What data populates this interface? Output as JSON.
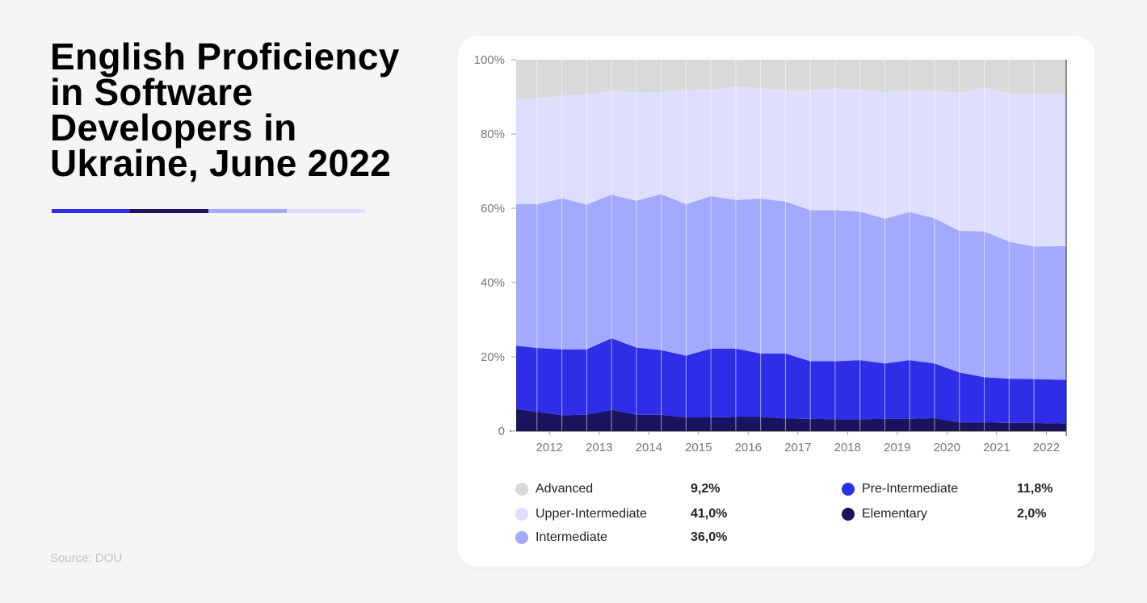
{
  "title": "English Proficiency in Software Developers in Ukraine, June 2022",
  "source": "Source: DOU",
  "accent_bar_colors": [
    "#2e2ee8",
    "#1a1460",
    "#a3a9fd",
    "#dedffe"
  ],
  "chart_data": {
    "type": "area",
    "stacked": true,
    "title": "",
    "xlabel": "",
    "ylabel": "",
    "xlim": [
      2011.33,
      2022.4
    ],
    "ylim": [
      0,
      100
    ],
    "x_ticks": [
      "2012",
      "2013",
      "2014",
      "2015",
      "2016",
      "2017",
      "2018",
      "2019",
      "2020",
      "2021",
      "2022"
    ],
    "y_ticks": [
      "0",
      "20%",
      "40%",
      "60%",
      "80%",
      "100%"
    ],
    "grid": "vertical lines at data points",
    "x": [
      2011.33,
      2011.75,
      2012.25,
      2012.75,
      2013.25,
      2013.75,
      2014.25,
      2014.75,
      2015.25,
      2015.75,
      2016.25,
      2016.75,
      2017.25,
      2017.75,
      2018.25,
      2018.75,
      2019.25,
      2019.75,
      2020.25,
      2020.75,
      2021.25,
      2021.75,
      2022.4
    ],
    "series": [
      {
        "name": "Elementary",
        "color": "#1a1460",
        "values": [
          5.9,
          5.2,
          4.3,
          4.4,
          5.7,
          4.4,
          4.4,
          3.7,
          3.7,
          3.8,
          3.8,
          3.4,
          3.3,
          3.2,
          3.2,
          3.3,
          3.3,
          3.5,
          2.3,
          2.3,
          2.2,
          2.2,
          2.0
        ]
      },
      {
        "name": "Pre-Intermediate",
        "color": "#2e2ee8",
        "values": [
          17.1,
          17.2,
          17.7,
          17.6,
          19.3,
          18.1,
          17.4,
          16.6,
          18.5,
          18.4,
          17.1,
          17.5,
          15.5,
          15.6,
          15.9,
          14.9,
          15.8,
          14.7,
          13.5,
          12.2,
          11.9,
          11.8,
          11.8
        ]
      },
      {
        "name": "Intermediate",
        "color": "#a3a9fd",
        "values": [
          38.1,
          38.7,
          40.7,
          39.0,
          38.7,
          39.5,
          42.0,
          40.8,
          41.1,
          40.0,
          41.7,
          40.9,
          40.7,
          40.7,
          40.0,
          39.0,
          39.9,
          39.1,
          38.1,
          39.3,
          36.9,
          35.7,
          36.0
        ]
      },
      {
        "name": "Upper-Intermediate",
        "color": "#dedffe",
        "values": [
          28.5,
          28.6,
          27.6,
          29.8,
          27.9,
          29.2,
          27.5,
          30.7,
          28.6,
          30.6,
          29.7,
          30.0,
          32.3,
          32.8,
          32.8,
          34.1,
          32.7,
          34.3,
          37.2,
          38.7,
          40.0,
          41.1,
          41.0
        ]
      },
      {
        "name": "Advanced",
        "color": "#d9d9d9",
        "values": [
          10.4,
          10.3,
          9.7,
          9.2,
          8.4,
          8.8,
          8.7,
          8.2,
          8.1,
          7.2,
          7.7,
          8.2,
          8.2,
          7.7,
          8.1,
          8.7,
          8.3,
          8.4,
          8.9,
          7.5,
          9.0,
          9.2,
          9.2
        ]
      }
    ],
    "legend": [
      {
        "label": "Advanced",
        "value": "9,2%",
        "color": "#d9d9d9"
      },
      {
        "label": "Upper-Intermediate",
        "value": "41,0%",
        "color": "#dedffe"
      },
      {
        "label": "Intermediate",
        "value": "36,0%",
        "color": "#a3a9fd"
      },
      {
        "label": "Pre-Intermediate",
        "value": "11,8%",
        "color": "#2e2ee8"
      },
      {
        "label": "Elementary",
        "value": "2,0%",
        "color": "#1a1460"
      }
    ],
    "legend_placement": "bottom"
  }
}
